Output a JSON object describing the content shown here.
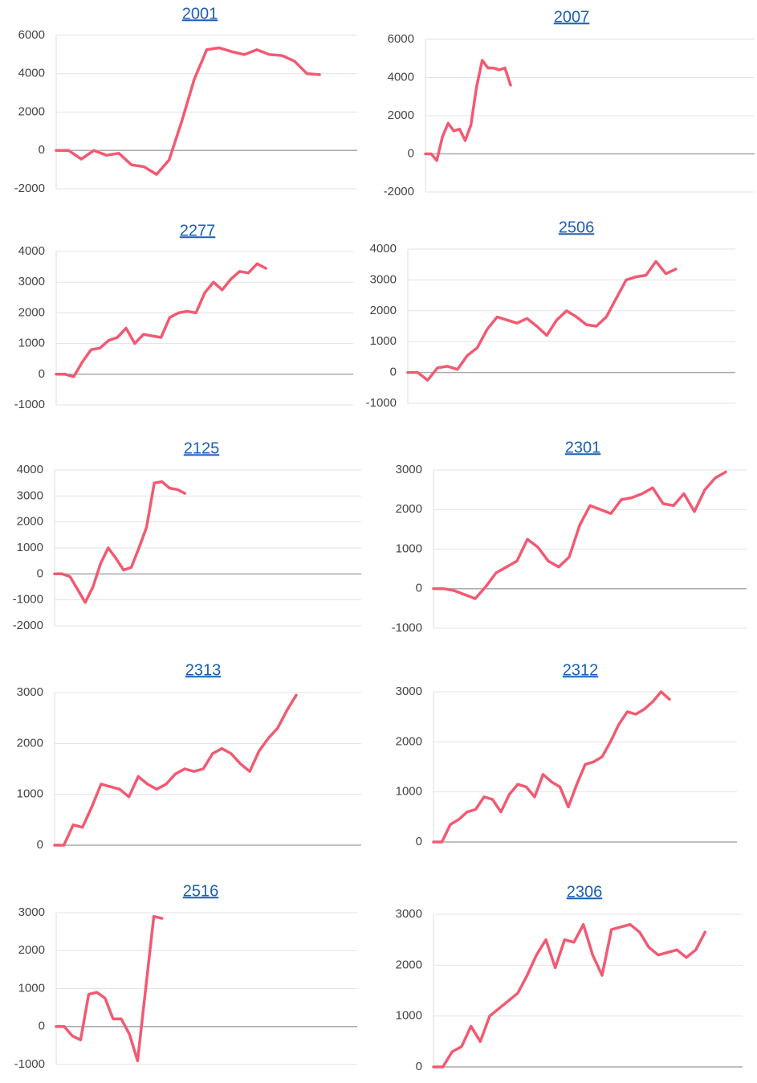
{
  "chart_data": [
    {
      "type": "line",
      "title": "2001",
      "color": "#f25a72",
      "ylim": [
        -2000,
        6000
      ],
      "yticks": [
        -2000,
        0,
        2000,
        4000,
        6000
      ],
      "grid": true,
      "values": [
        0,
        0,
        -450,
        0,
        -250,
        -150,
        -750,
        -850,
        -1250,
        -500,
        1500,
        3700,
        5250,
        5350,
        5150,
        5000,
        5250,
        5000,
        4950,
        4650,
        4000,
        3950
      ]
    },
    {
      "type": "line",
      "title": "2007",
      "color": "#f25a72",
      "ylim": [
        -2000,
        6000
      ],
      "yticks": [
        -2000,
        0,
        2000,
        4000,
        6000
      ],
      "grid": true,
      "values": [
        0,
        0,
        -350,
        900,
        1600,
        1200,
        1300,
        700,
        1500,
        3500,
        4900,
        4500,
        4500,
        4400,
        4500,
        3600
      ]
    },
    {
      "type": "line",
      "title": "2277",
      "color": "#f25a72",
      "ylim": [
        -1000,
        4000
      ],
      "yticks": [
        -1000,
        0,
        1000,
        2000,
        3000,
        4000
      ],
      "grid": true,
      "values": [
        0,
        0,
        -80,
        400,
        800,
        850,
        1100,
        1200,
        1500,
        1000,
        1300,
        1250,
        1200,
        1850,
        2000,
        2050,
        2000,
        2650,
        3000,
        2750,
        3100,
        3350,
        3300,
        3600,
        3450
      ]
    },
    {
      "type": "line",
      "title": "2506",
      "color": "#f25a72",
      "ylim": [
        -1000,
        4000
      ],
      "yticks": [
        -1000,
        0,
        1000,
        2000,
        3000,
        4000
      ],
      "grid": true,
      "values": [
        0,
        0,
        -250,
        150,
        200,
        100,
        550,
        800,
        1400,
        1800,
        1700,
        1600,
        1750,
        1500,
        1200,
        1700,
        2000,
        1800,
        1550,
        1500,
        1800,
        2400,
        3000,
        3100,
        3150,
        3600,
        3200,
        3350
      ]
    },
    {
      "type": "line",
      "title": "2125",
      "color": "#f25a72",
      "ylim": [
        -2000,
        4000
      ],
      "yticks": [
        -2000,
        -1000,
        0,
        1000,
        2000,
        3000,
        4000
      ],
      "grid": true,
      "values": [
        0,
        0,
        -100,
        -600,
        -1100,
        -500,
        400,
        1000,
        600,
        150,
        250,
        1000,
        1800,
        3500,
        3550,
        3300,
        3250,
        3100
      ]
    },
    {
      "type": "line",
      "title": "2301",
      "color": "#f25a72",
      "ylim": [
        -1000,
        3000
      ],
      "yticks": [
        -1000,
        0,
        1000,
        2000,
        3000
      ],
      "grid": true,
      "values": [
        0,
        0,
        -50,
        -150,
        -250,
        50,
        400,
        550,
        700,
        1250,
        1050,
        700,
        550,
        800,
        1600,
        2100,
        2000,
        1900,
        2250,
        2300,
        2400,
        2550,
        2150,
        2100,
        2400,
        1950,
        2500,
        2800,
        2950
      ]
    },
    {
      "type": "line",
      "title": "2313",
      "color": "#f25a72",
      "ylim": [
        0,
        3000
      ],
      "yticks": [
        0,
        1000,
        2000,
        3000
      ],
      "grid": true,
      "values": [
        0,
        0,
        400,
        350,
        750,
        1200,
        1150,
        1100,
        950,
        1350,
        1200,
        1100,
        1200,
        1400,
        1500,
        1450,
        1500,
        1800,
        1900,
        1800,
        1600,
        1450,
        1850,
        2100,
        2300,
        2650,
        2950
      ]
    },
    {
      "type": "line",
      "title": "2312",
      "color": "#f25a72",
      "ylim": [
        0,
        3000
      ],
      "yticks": [
        0,
        1000,
        2000,
        3000
      ],
      "grid": true,
      "values": [
        0,
        0,
        350,
        450,
        600,
        650,
        900,
        850,
        600,
        950,
        1150,
        1100,
        900,
        1350,
        1200,
        1100,
        700,
        1150,
        1550,
        1600,
        1700,
        2000,
        2350,
        2600,
        2550,
        2650,
        2800,
        3000,
        2850
      ]
    },
    {
      "type": "line",
      "title": "2516",
      "color": "#f25a72",
      "ylim": [
        -1000,
        3000
      ],
      "yticks": [
        -1000,
        0,
        1000,
        2000,
        3000
      ],
      "grid": true,
      "values": [
        0,
        0,
        -250,
        -350,
        850,
        900,
        750,
        200,
        200,
        -200,
        -900,
        1000,
        2900,
        2850
      ]
    },
    {
      "type": "line",
      "title": "2306",
      "color": "#f25a72",
      "ylim": [
        0,
        3000
      ],
      "yticks": [
        0,
        1000,
        2000,
        3000
      ],
      "grid": true,
      "values": [
        0,
        0,
        300,
        400,
        800,
        500,
        1000,
        1150,
        1300,
        1450,
        1800,
        2200,
        2500,
        1950,
        2500,
        2450,
        2800,
        2200,
        1800,
        2700,
        2750,
        2800,
        2650,
        2350,
        2200,
        2250,
        2300,
        2150,
        2300,
        2650
      ]
    }
  ]
}
